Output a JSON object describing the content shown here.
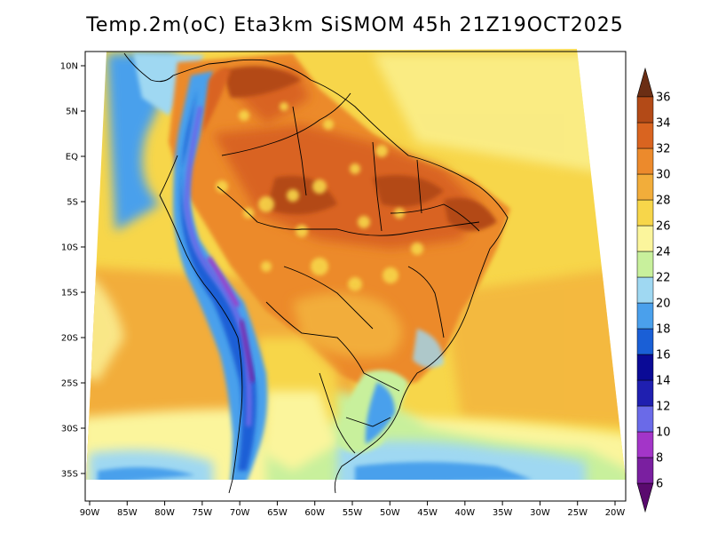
{
  "title": "Temp.2m(oC) Eta3km SiSMOM 45h 21Z19OCT2025",
  "map": {
    "variable": "2m temperature",
    "units": "oC",
    "longitude_labels": [
      "90W",
      "85W",
      "80W",
      "75W",
      "70W",
      "65W",
      "60W",
      "55W",
      "50W",
      "45W",
      "40W",
      "35W",
      "30W",
      "25W",
      "20W"
    ],
    "latitude_labels": [
      "10N",
      "5N",
      "EQ",
      "5S",
      "10S",
      "15S",
      "20S",
      "25S",
      "30S",
      "35S"
    ]
  },
  "colorbar": {
    "labels": [
      "6",
      "8",
      "10",
      "12",
      "14",
      "16",
      "18",
      "20",
      "22",
      "24",
      "26",
      "28",
      "30",
      "32",
      "34",
      "36"
    ],
    "colors": {
      "lt6": "#5a0a6e",
      "6_8": "#7a1fa0",
      "8_10": "#a335c8",
      "10_12": "#6a6ae8",
      "12_14": "#1f1fb0",
      "14_16": "#0a0a96",
      "16_18": "#1a5fd6",
      "18_20": "#4aa0ec",
      "20_22": "#9fd8f2",
      "22_24": "#c8f09c",
      "24_26": "#fbf59c",
      "26_28": "#f7d64a",
      "28_30": "#f2ad3a",
      "30_32": "#ec8a2c",
      "32_34": "#d96420",
      "34_36": "#b34a17",
      "gt36": "#6b2e14"
    }
  }
}
